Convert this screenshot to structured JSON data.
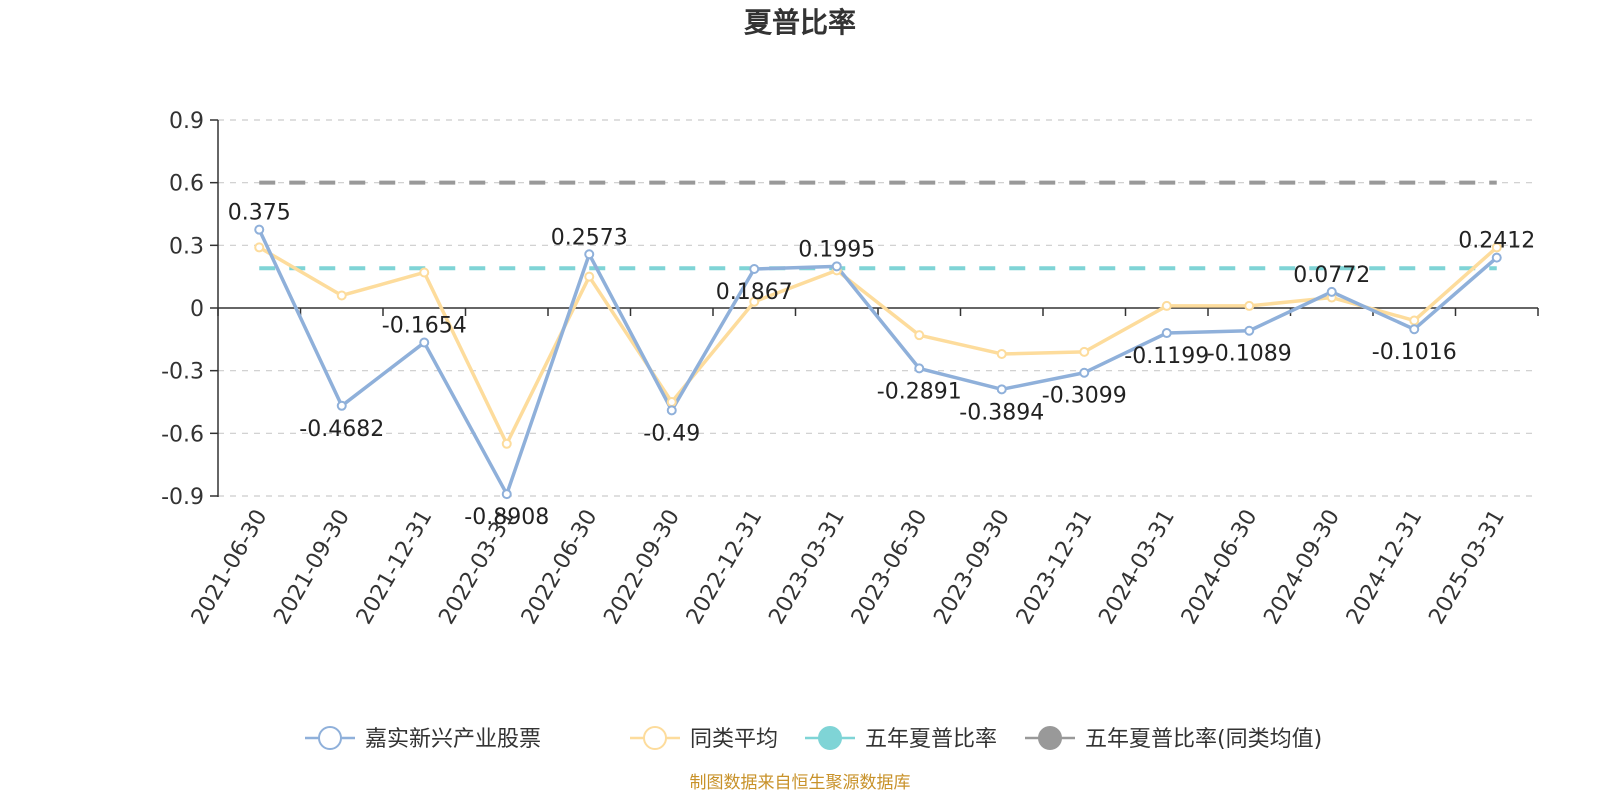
{
  "chart_data": {
    "type": "line",
    "title": "夏普比率",
    "categories": [
      "2021-06-30",
      "2021-09-30",
      "2021-12-31",
      "2022-03-31",
      "2022-06-30",
      "2022-09-30",
      "2022-12-31",
      "2023-03-31",
      "2023-06-30",
      "2023-09-30",
      "2023-12-31",
      "2024-03-31",
      "2024-06-30",
      "2024-09-30",
      "2024-12-31",
      "2025-03-31"
    ],
    "ylim": [
      -0.9,
      0.9
    ],
    "yticks": [
      "0.9",
      "0.6",
      "0.3",
      "0",
      "-0.3",
      "-0.6",
      "-0.9"
    ],
    "grid": true,
    "legend_position": "bottom",
    "series": [
      {
        "name": "嘉实新兴产业股票",
        "color": "#8fb0da",
        "values": [
          0.375,
          -0.4682,
          -0.1654,
          -0.8908,
          0.2573,
          -0.49,
          0.1867,
          0.1995,
          -0.2891,
          -0.3894,
          -0.3099,
          -0.1199,
          -0.1089,
          0.0772,
          -0.1016,
          0.2412
        ],
        "labels": [
          "0.375",
          "-0.4682",
          "-0.1654",
          "-0.8908",
          "0.2573",
          "-0.49",
          "0.1867",
          "0.1995",
          "-0.2891",
          "-0.3894",
          "-0.3099",
          "-0.1199",
          "-0.1089",
          "0.0772",
          "-0.1016",
          "0.2412"
        ]
      },
      {
        "name": "同类平均",
        "color": "#fddc9c",
        "values": [
          0.29,
          0.06,
          0.17,
          -0.65,
          0.15,
          -0.45,
          0.03,
          0.18,
          -0.13,
          -0.22,
          -0.21,
          0.01,
          0.01,
          0.05,
          -0.06,
          0.29
        ]
      },
      {
        "name": "五年夏普比率",
        "color": "#7fd4d6",
        "constant": 0.19
      },
      {
        "name": "五年夏普比率(同类均值)",
        "color": "#999999",
        "constant": 0.6
      }
    ]
  },
  "source": "制图数据来自恒生聚源数据库"
}
